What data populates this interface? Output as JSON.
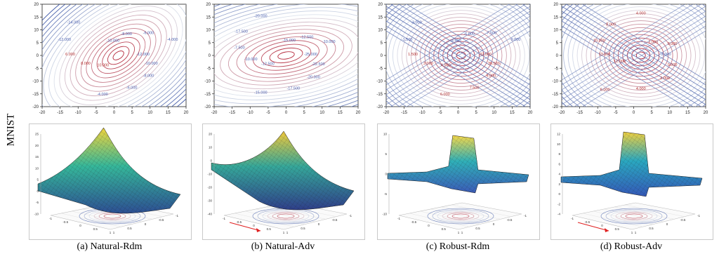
{
  "row_label": "MNIST",
  "panels": [
    {
      "caption": "(a) Natural-Rdm",
      "contour_labels": [
        "-12.000",
        "-10.000",
        "-8.000",
        "-6.000",
        "-4.000",
        "10.000",
        "8.000",
        "6.000",
        "-12.000",
        "-14.000",
        "-10.000",
        "-8.000",
        "-6.000",
        "-4.000"
      ],
      "surface_z_ticks": [
        "25",
        "20",
        "15",
        "10",
        "5",
        "0",
        "-5",
        "-10"
      ],
      "surface_x_ticks": [
        "-1",
        "-0.5",
        "0",
        "0.5",
        "1"
      ],
      "surface_y_ticks": [
        "1",
        "0.5",
        "0",
        "-0.5",
        "-1"
      ]
    },
    {
      "caption": "(b) Natural-Adv",
      "contour_labels": [
        "-25.000",
        "-22.500",
        "-20.000",
        "-17.500",
        "-15.000",
        "-12.500",
        "-10.000",
        "-7.500",
        "-17.500",
        "-20.000",
        "-15.000",
        "-12.500",
        "-10.000"
      ],
      "surface_z_ticks": [
        "20",
        "10",
        "0",
        "-10",
        "-20",
        "-30",
        "-40"
      ],
      "surface_x_ticks": [
        "-1",
        "-0.5",
        "0",
        "0.5",
        "1"
      ],
      "surface_y_ticks": [
        "1",
        "0.5",
        "0",
        "-0.5",
        "-1"
      ]
    },
    {
      "caption": "(c) Robust-Rdm",
      "contour_labels": [
        "32.000",
        "30.500",
        "9.000",
        "7.500",
        "6.000",
        "4.500",
        "3.000",
        "1.500",
        "-1.500",
        "-3.000",
        "-4.500",
        "-6.000",
        "-7.500",
        "-9.000"
      ],
      "surface_z_ticks": [
        "10",
        "5",
        "0",
        "-5",
        "-10"
      ],
      "surface_x_ticks": [
        "-1",
        "-0.5",
        "0",
        "0.5",
        "1"
      ],
      "surface_y_ticks": [
        "1",
        "0.5",
        "0",
        "-0.5",
        "-1"
      ]
    },
    {
      "caption": "(d) Robust-Adv",
      "contour_labels": [
        "-2.000",
        "0.000",
        "2.000",
        "4.000",
        "6.000",
        "12.000",
        "13.000",
        "10.000",
        "8.000",
        "4.000",
        "2.000",
        "0.000"
      ],
      "surface_z_ticks": [
        "12",
        "10",
        "8",
        "6",
        "4",
        "2",
        "0",
        "-2",
        "-4"
      ],
      "surface_x_ticks": [
        "-1",
        "-0.5",
        "0",
        "0.5",
        "1"
      ],
      "surface_y_ticks": [
        "1",
        "0.5",
        "0",
        "-0.5",
        "-1"
      ]
    }
  ],
  "chart_data": [
    {
      "type": "heatmap",
      "title": "",
      "xlim": [
        -20,
        20
      ],
      "ylim": [
        -20,
        20
      ],
      "x_ticks": [
        "-20",
        "-15",
        "-10",
        "-5",
        "0",
        "5",
        "10",
        "15",
        "20"
      ],
      "y_ticks": [
        "20",
        "15",
        "10",
        "5",
        "0",
        "-5",
        "-10",
        "-15",
        "-20"
      ]
    },
    {
      "type": "heatmap",
      "title": "",
      "xlim": [
        -20,
        20
      ],
      "ylim": [
        -20,
        20
      ],
      "x_ticks": [
        "-20",
        "-15",
        "-10",
        "-5",
        "0",
        "5",
        "10",
        "15",
        "20"
      ],
      "y_ticks": [
        "20",
        "15",
        "10",
        "5",
        "0",
        "-5",
        "-10",
        "-15",
        "-20"
      ]
    },
    {
      "type": "heatmap",
      "title": "",
      "xlim": [
        -20,
        20
      ],
      "ylim": [
        -20,
        20
      ],
      "x_ticks": [
        "-20",
        "-15",
        "-10",
        "-5",
        "0",
        "5",
        "10",
        "15",
        "20"
      ],
      "y_ticks": [
        "20",
        "15",
        "10",
        "5",
        "0",
        "-5",
        "-10",
        "-15",
        "-20"
      ]
    },
    {
      "type": "heatmap",
      "title": "",
      "xlim": [
        -20,
        20
      ],
      "ylim": [
        -20,
        20
      ],
      "x_ticks": [
        "-20",
        "-15",
        "-10",
        "-5",
        "0",
        "5",
        "10",
        "15",
        "20"
      ],
      "y_ticks": [
        "20",
        "15",
        "10",
        "5",
        "0",
        "-5",
        "-10",
        "-15",
        "-20"
      ]
    }
  ],
  "colors": {
    "contour_low": "#3a54a4",
    "contour_high": "#b2182b",
    "arrow": "#e02020"
  }
}
